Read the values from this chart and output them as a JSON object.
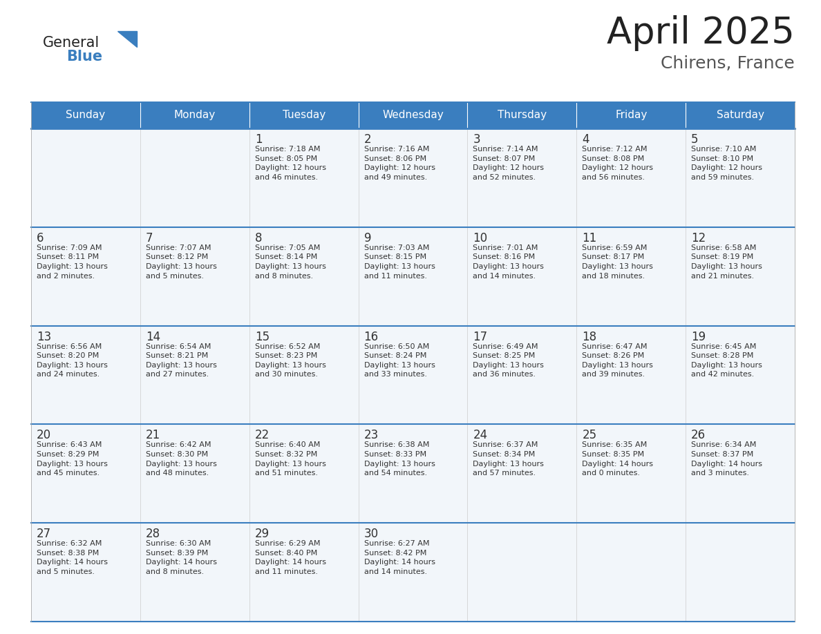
{
  "title": "April 2025",
  "subtitle": "Chirens, France",
  "header_bg": "#3a7ebf",
  "header_text_color": "#ffffff",
  "cell_bg": "#f2f6fa",
  "border_color": "#3a7ebf",
  "row_border_color": "#3a7ebf",
  "text_color": "#333333",
  "days_of_week": [
    "Sunday",
    "Monday",
    "Tuesday",
    "Wednesday",
    "Thursday",
    "Friday",
    "Saturday"
  ],
  "weeks": [
    [
      {
        "day": "",
        "info": ""
      },
      {
        "day": "",
        "info": ""
      },
      {
        "day": "1",
        "info": "Sunrise: 7:18 AM\nSunset: 8:05 PM\nDaylight: 12 hours\nand 46 minutes."
      },
      {
        "day": "2",
        "info": "Sunrise: 7:16 AM\nSunset: 8:06 PM\nDaylight: 12 hours\nand 49 minutes."
      },
      {
        "day": "3",
        "info": "Sunrise: 7:14 AM\nSunset: 8:07 PM\nDaylight: 12 hours\nand 52 minutes."
      },
      {
        "day": "4",
        "info": "Sunrise: 7:12 AM\nSunset: 8:08 PM\nDaylight: 12 hours\nand 56 minutes."
      },
      {
        "day": "5",
        "info": "Sunrise: 7:10 AM\nSunset: 8:10 PM\nDaylight: 12 hours\nand 59 minutes."
      }
    ],
    [
      {
        "day": "6",
        "info": "Sunrise: 7:09 AM\nSunset: 8:11 PM\nDaylight: 13 hours\nand 2 minutes."
      },
      {
        "day": "7",
        "info": "Sunrise: 7:07 AM\nSunset: 8:12 PM\nDaylight: 13 hours\nand 5 minutes."
      },
      {
        "day": "8",
        "info": "Sunrise: 7:05 AM\nSunset: 8:14 PM\nDaylight: 13 hours\nand 8 minutes."
      },
      {
        "day": "9",
        "info": "Sunrise: 7:03 AM\nSunset: 8:15 PM\nDaylight: 13 hours\nand 11 minutes."
      },
      {
        "day": "10",
        "info": "Sunrise: 7:01 AM\nSunset: 8:16 PM\nDaylight: 13 hours\nand 14 minutes."
      },
      {
        "day": "11",
        "info": "Sunrise: 6:59 AM\nSunset: 8:17 PM\nDaylight: 13 hours\nand 18 minutes."
      },
      {
        "day": "12",
        "info": "Sunrise: 6:58 AM\nSunset: 8:19 PM\nDaylight: 13 hours\nand 21 minutes."
      }
    ],
    [
      {
        "day": "13",
        "info": "Sunrise: 6:56 AM\nSunset: 8:20 PM\nDaylight: 13 hours\nand 24 minutes."
      },
      {
        "day": "14",
        "info": "Sunrise: 6:54 AM\nSunset: 8:21 PM\nDaylight: 13 hours\nand 27 minutes."
      },
      {
        "day": "15",
        "info": "Sunrise: 6:52 AM\nSunset: 8:23 PM\nDaylight: 13 hours\nand 30 minutes."
      },
      {
        "day": "16",
        "info": "Sunrise: 6:50 AM\nSunset: 8:24 PM\nDaylight: 13 hours\nand 33 minutes."
      },
      {
        "day": "17",
        "info": "Sunrise: 6:49 AM\nSunset: 8:25 PM\nDaylight: 13 hours\nand 36 minutes."
      },
      {
        "day": "18",
        "info": "Sunrise: 6:47 AM\nSunset: 8:26 PM\nDaylight: 13 hours\nand 39 minutes."
      },
      {
        "day": "19",
        "info": "Sunrise: 6:45 AM\nSunset: 8:28 PM\nDaylight: 13 hours\nand 42 minutes."
      }
    ],
    [
      {
        "day": "20",
        "info": "Sunrise: 6:43 AM\nSunset: 8:29 PM\nDaylight: 13 hours\nand 45 minutes."
      },
      {
        "day": "21",
        "info": "Sunrise: 6:42 AM\nSunset: 8:30 PM\nDaylight: 13 hours\nand 48 minutes."
      },
      {
        "day": "22",
        "info": "Sunrise: 6:40 AM\nSunset: 8:32 PM\nDaylight: 13 hours\nand 51 minutes."
      },
      {
        "day": "23",
        "info": "Sunrise: 6:38 AM\nSunset: 8:33 PM\nDaylight: 13 hours\nand 54 minutes."
      },
      {
        "day": "24",
        "info": "Sunrise: 6:37 AM\nSunset: 8:34 PM\nDaylight: 13 hours\nand 57 minutes."
      },
      {
        "day": "25",
        "info": "Sunrise: 6:35 AM\nSunset: 8:35 PM\nDaylight: 14 hours\nand 0 minutes."
      },
      {
        "day": "26",
        "info": "Sunrise: 6:34 AM\nSunset: 8:37 PM\nDaylight: 14 hours\nand 3 minutes."
      }
    ],
    [
      {
        "day": "27",
        "info": "Sunrise: 6:32 AM\nSunset: 8:38 PM\nDaylight: 14 hours\nand 5 minutes."
      },
      {
        "day": "28",
        "info": "Sunrise: 6:30 AM\nSunset: 8:39 PM\nDaylight: 14 hours\nand 8 minutes."
      },
      {
        "day": "29",
        "info": "Sunrise: 6:29 AM\nSunset: 8:40 PM\nDaylight: 14 hours\nand 11 minutes."
      },
      {
        "day": "30",
        "info": "Sunrise: 6:27 AM\nSunset: 8:42 PM\nDaylight: 14 hours\nand 14 minutes."
      },
      {
        "day": "",
        "info": ""
      },
      {
        "day": "",
        "info": ""
      },
      {
        "day": "",
        "info": ""
      }
    ]
  ]
}
